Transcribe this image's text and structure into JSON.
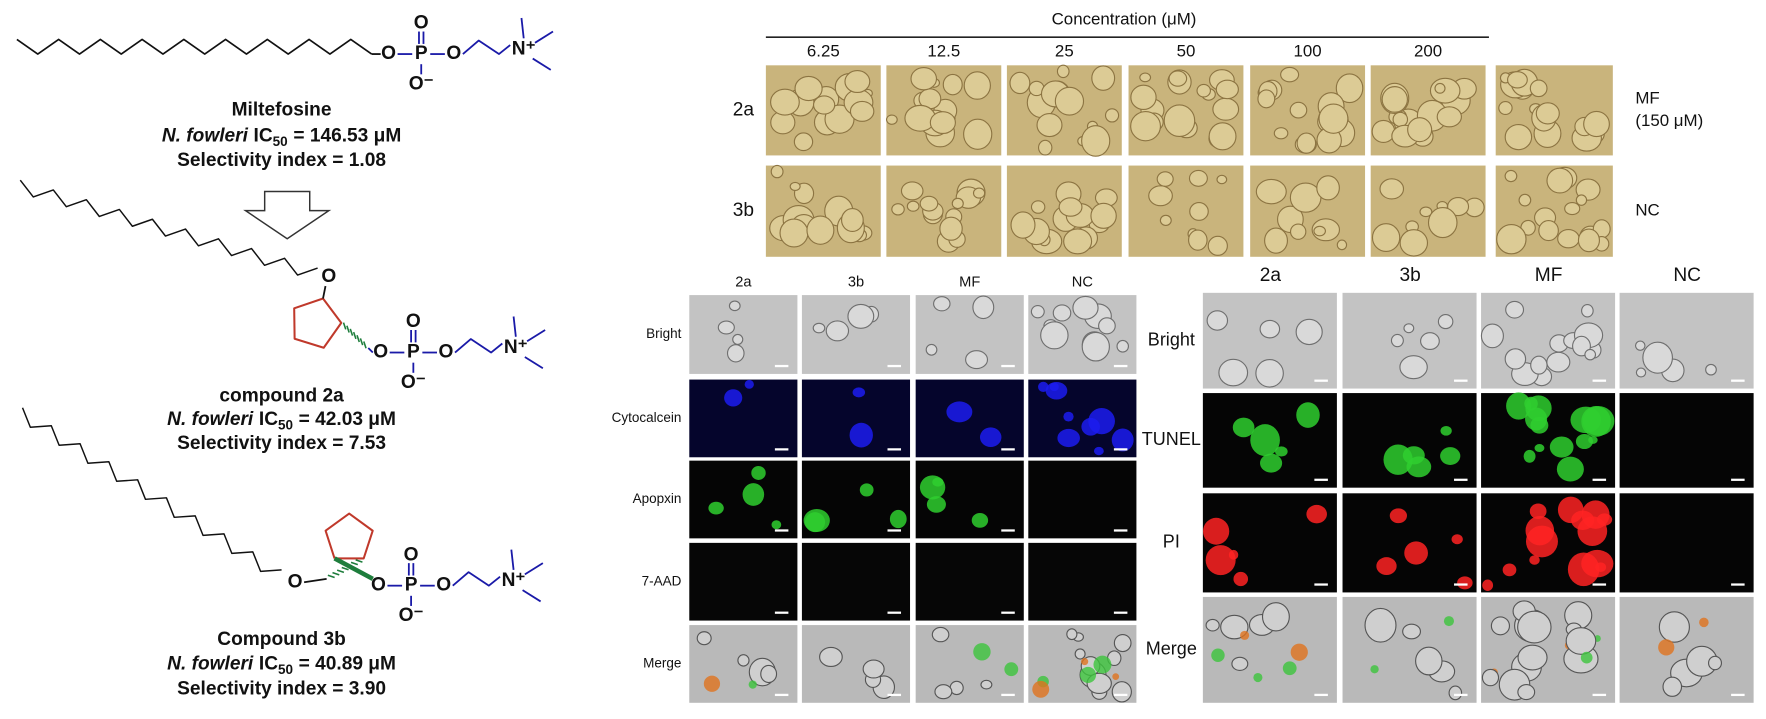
{
  "compounds": [
    {
      "name": "Miltefosine",
      "organism": "N. fowleri",
      "metric": "IC",
      "metric_sub": "50",
      "value": "= 146.53 μM",
      "selectivity": "Selectivity index = 1.08",
      "atoms": [
        "O",
        "P",
        "O",
        "O⁻",
        "O",
        "N⁺"
      ]
    },
    {
      "name": "compound 2a",
      "organism": "N. fowleri",
      "metric": "IC",
      "metric_sub": "50",
      "value": "= 42.03 μM",
      "selectivity": "Selectivity index = 7.53",
      "atoms": [
        "O",
        "O",
        "P",
        "O",
        "O⁻",
        "O",
        "N⁺"
      ]
    },
    {
      "name": "Compound 3b",
      "organism": "N. fowleri",
      "metric": "IC",
      "metric_sub": "50",
      "value": "= 40.89 μM",
      "selectivity": "Selectivity index = 3.90",
      "atoms": [
        "O",
        "O",
        "P",
        "O",
        "O⁻",
        "O",
        "N⁺"
      ]
    }
  ],
  "phase_panel": {
    "title": "Concentration (μM)",
    "concentrations": [
      "6.25",
      "12.5",
      "25",
      "50",
      "100",
      "200"
    ],
    "rows": [
      "2a",
      "3b"
    ],
    "controls": [
      [
        "MF",
        "(150 μM)"
      ],
      [
        "NC"
      ]
    ]
  },
  "annexin_panel": {
    "columns": [
      "2a",
      "3b",
      "MF",
      "NC"
    ],
    "rows": [
      "Bright",
      "Cytocalcein",
      "Apopxin",
      "7-AAD",
      "Merge"
    ]
  },
  "tunel_panel": {
    "columns": [
      "2a",
      "3b",
      "MF",
      "NC"
    ],
    "rows": [
      "Bright",
      "TUNEL",
      "PI",
      "Merge"
    ]
  }
}
